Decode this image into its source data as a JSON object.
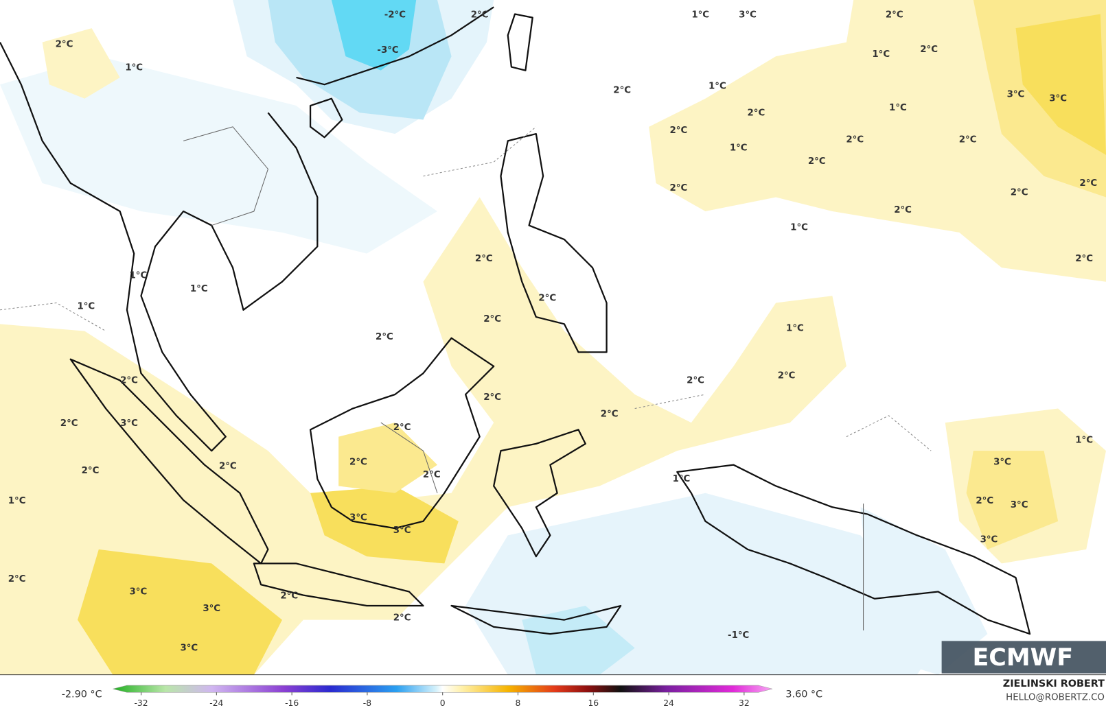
{
  "map": {
    "contour_labels": [
      "2°C",
      "1°C",
      "-2°C",
      "-3°C",
      "2°C",
      "1°C",
      "3°C",
      "2°C",
      "1°C",
      "2°C",
      "3°C",
      "3°C",
      "2°C",
      "1°C",
      "2°C",
      "1°C",
      "2°C",
      "1°C",
      "2°C",
      "2°C",
      "2°C",
      "2°C",
      "2°C",
      "2°C",
      "2°C",
      "1°C",
      "2°C",
      "2°C",
      "1°C",
      "1°C",
      "1°C",
      "2°C",
      "2°C",
      "1°C",
      "2°C",
      "2°C",
      "2°C",
      "2°C",
      "2°C",
      "2°C",
      "2°C",
      "3°C",
      "2°C",
      "1°C",
      "2°C",
      "3°C",
      "2°C",
      "2°C",
      "2°C",
      "1°C",
      "1°C",
      "2°C",
      "3°C",
      "3°C",
      "3°C",
      "3°C",
      "2°C",
      "3°C",
      "2°C",
      "3°C",
      "2°C",
      "-1°C",
      "3°C"
    ],
    "colorbar": {
      "min_label": "-2.90 °C",
      "max_label": "3.60 °C",
      "lim": [
        -35,
        35
      ],
      "ticks": [
        -32,
        -24,
        -16,
        -8,
        0,
        8,
        16,
        24,
        32
      ]
    },
    "credit": {
      "name": "ZIELINSKI ROBERT",
      "email": "HELLO@ROBERTZ.CO"
    },
    "logo": "ECMWF"
  }
}
